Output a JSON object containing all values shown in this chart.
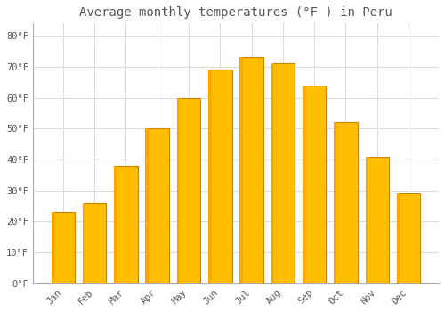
{
  "title": "Average monthly temperatures (°F ) in Peru",
  "months": [
    "Jan",
    "Feb",
    "Mar",
    "Apr",
    "May",
    "Jun",
    "Jul",
    "Aug",
    "Sep",
    "Oct",
    "Nov",
    "Dec"
  ],
  "values": [
    23,
    26,
    38,
    50,
    60,
    69,
    73,
    71,
    64,
    52,
    41,
    29
  ],
  "bar_color": "#FFA500",
  "bar_color_light": "#FFBE00",
  "bar_edge_color": "#CC8400",
  "background_color": "#FFFFFF",
  "plot_bg_color": "#FFFFFF",
  "grid_color": "#DDDDDD",
  "text_color": "#555555",
  "ylim": [
    0,
    84
  ],
  "yticks": [
    0,
    10,
    20,
    30,
    40,
    50,
    60,
    70,
    80
  ],
  "ytick_labels": [
    "0°F",
    "10°F",
    "20°F",
    "30°F",
    "40°F",
    "50°F",
    "60°F",
    "70°F",
    "80°F"
  ],
  "title_fontsize": 10,
  "tick_fontsize": 7.5,
  "font_family": "monospace",
  "bar_width": 0.75
}
